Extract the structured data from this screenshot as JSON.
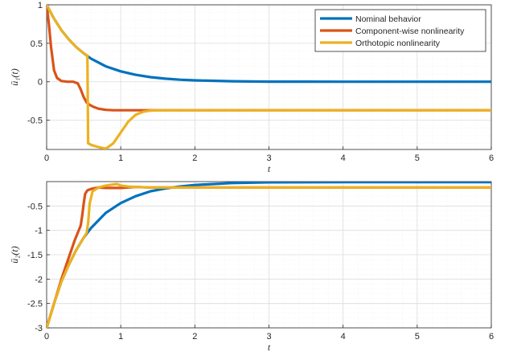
{
  "colors": {
    "nominal": "#0072BD",
    "componentwise": "#D95319",
    "orthotopic": "#EDB120",
    "grid_major": "#dcdcdc",
    "grid_minor": "#efefef",
    "axis": "#262626"
  },
  "chart_data": [
    {
      "type": "line",
      "xlabel": "t",
      "ylabel": "ū₁(t)",
      "xlim": [
        0,
        6
      ],
      "ylim": [
        -0.88,
        1
      ],
      "xticks": [
        "0",
        "1",
        "2",
        "3",
        "4",
        "5",
        "6"
      ],
      "xtick_values": [
        0,
        1,
        2,
        3,
        4,
        5,
        6
      ],
      "yticks": [
        "-0.5",
        "0",
        "0.5",
        "1"
      ],
      "ytick_values": [
        -0.5,
        0,
        0.5,
        1
      ],
      "grid": true,
      "minor_grid": true,
      "legend_position": "top-right",
      "legend": [
        "Nominal behavior",
        "Component-wise nonlinearity",
        "Orthotopic nonlinearity"
      ],
      "series": [
        {
          "name": "Nominal behavior",
          "x": [
            0,
            0.1,
            0.2,
            0.3,
            0.4,
            0.5,
            0.6,
            0.7,
            0.8,
            1.0,
            1.2,
            1.4,
            1.6,
            1.8,
            2.0,
            2.5,
            3.0,
            4.0,
            5.0,
            6.0
          ],
          "y": [
            1,
            0.82,
            0.67,
            0.55,
            0.45,
            0.37,
            0.3,
            0.25,
            0.2,
            0.135,
            0.09,
            0.06,
            0.04,
            0.027,
            0.018,
            0.007,
            0.002,
            0.0,
            0.0,
            0.0
          ]
        },
        {
          "name": "Component-wise nonlinearity",
          "x": [
            0,
            0.03,
            0.06,
            0.1,
            0.14,
            0.2,
            0.28,
            0.36,
            0.42,
            0.46,
            0.5,
            0.54,
            0.58,
            0.64,
            0.7,
            0.8,
            0.9,
            1.0,
            1.2,
            1.4,
            2.0,
            3.0,
            4.0,
            5.0,
            6.0
          ],
          "y": [
            1,
            0.75,
            0.45,
            0.15,
            0.05,
            0.01,
            0.0,
            0.0,
            -0.02,
            -0.1,
            -0.2,
            -0.27,
            -0.3,
            -0.33,
            -0.35,
            -0.365,
            -0.37,
            -0.37,
            -0.37,
            -0.37,
            -0.37,
            -0.37,
            -0.37,
            -0.37,
            -0.37
          ]
        },
        {
          "name": "Orthotopic nonlinearity",
          "x": [
            0,
            0.1,
            0.2,
            0.3,
            0.4,
            0.5,
            0.53,
            0.55,
            0.56,
            0.6,
            0.7,
            0.8,
            0.9,
            1.0,
            1.1,
            1.2,
            1.3,
            1.4,
            1.5,
            1.6,
            2.0,
            3.0,
            4.0,
            5.0,
            6.0
          ],
          "y": [
            1,
            0.82,
            0.67,
            0.55,
            0.45,
            0.37,
            0.35,
            0.34,
            -0.8,
            -0.82,
            -0.85,
            -0.87,
            -0.8,
            -0.66,
            -0.52,
            -0.43,
            -0.39,
            -0.375,
            -0.37,
            -0.37,
            -0.37,
            -0.37,
            -0.37,
            -0.37,
            -0.37
          ]
        }
      ]
    },
    {
      "type": "line",
      "xlabel": "t",
      "ylabel": "ū₂(t)",
      "xlim": [
        0,
        6
      ],
      "ylim": [
        -3,
        0
      ],
      "xticks": [
        "0",
        "1",
        "2",
        "3",
        "4",
        "5",
        "6"
      ],
      "xtick_values": [
        0,
        1,
        2,
        3,
        4,
        5,
        6
      ],
      "yticks": [
        "-3",
        "-2.5",
        "-2",
        "-1.5",
        "-1",
        "-0.5"
      ],
      "ytick_values": [
        -3,
        -2.5,
        -2,
        -1.5,
        -1,
        -0.5
      ],
      "grid": true,
      "minor_grid": true,
      "series": [
        {
          "name": "Nominal behavior",
          "x": [
            0,
            0.1,
            0.2,
            0.3,
            0.4,
            0.5,
            0.6,
            0.8,
            1.0,
            1.2,
            1.4,
            1.6,
            1.8,
            2.0,
            2.5,
            3.0,
            4.0,
            5.0,
            6.0
          ],
          "y": [
            -3,
            -2.5,
            -2.05,
            -1.7,
            -1.4,
            -1.15,
            -0.95,
            -0.64,
            -0.44,
            -0.3,
            -0.2,
            -0.14,
            -0.1,
            -0.07,
            -0.03,
            -0.015,
            -0.01,
            -0.01,
            -0.01
          ]
        },
        {
          "name": "Component-wise nonlinearity",
          "x": [
            0,
            0.1,
            0.2,
            0.3,
            0.38,
            0.42,
            0.46,
            0.48,
            0.5,
            0.52,
            0.55,
            0.6,
            0.7,
            0.8,
            1.0,
            1.2,
            1.4,
            1.6,
            2.0,
            3.0,
            4.0,
            5.0,
            6.0
          ],
          "y": [
            -3,
            -2.5,
            -2.0,
            -1.55,
            -1.2,
            -1.05,
            -0.9,
            -0.7,
            -0.45,
            -0.25,
            -0.18,
            -0.15,
            -0.12,
            -0.13,
            -0.13,
            -0.11,
            -0.12,
            -0.12,
            -0.12,
            -0.12,
            -0.12,
            -0.12,
            -0.12
          ]
        },
        {
          "name": "Orthotopic nonlinearity",
          "x": [
            0,
            0.1,
            0.2,
            0.3,
            0.4,
            0.5,
            0.54,
            0.56,
            0.58,
            0.62,
            0.7,
            0.8,
            0.9,
            0.95,
            1.0,
            1.1,
            1.2,
            1.4,
            1.6,
            2.0,
            3.0,
            4.0,
            5.0,
            6.0
          ],
          "y": [
            -3,
            -2.5,
            -2.05,
            -1.7,
            -1.4,
            -1.15,
            -1.05,
            -0.85,
            -0.45,
            -0.2,
            -0.12,
            -0.08,
            -0.06,
            -0.05,
            -0.08,
            -0.1,
            -0.11,
            -0.12,
            -0.12,
            -0.12,
            -0.12,
            -0.12,
            -0.12,
            -0.12
          ]
        }
      ]
    }
  ]
}
